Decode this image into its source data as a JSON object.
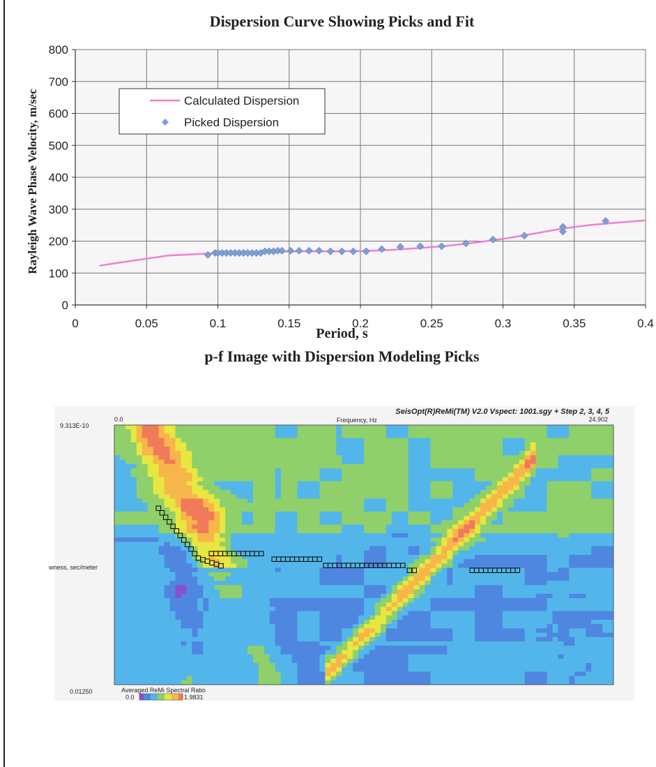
{
  "chart_data": [
    {
      "type": "scatter",
      "title": "Dispersion Curve Showing Picks and Fit",
      "xlabel": "Period, s",
      "ylabel": "Rayleigh Wave Phase Velocity, m/sec",
      "xlim": [
        0,
        0.4
      ],
      "ylim": [
        0,
        800
      ],
      "xticks": [
        "0",
        "0.05",
        "0.1",
        "0.15",
        "0.2",
        "0.25",
        "0.3",
        "0.35",
        "0.4"
      ],
      "yticks": [
        "0",
        "100",
        "200",
        "300",
        "400",
        "500",
        "600",
        "700",
        "800"
      ],
      "grid": true,
      "legend_position": "upper-left",
      "series": [
        {
          "name": "Calculated Dispersion",
          "kind": "line",
          "color": "#f07fd0",
          "x": [
            0.017,
            0.03,
            0.05,
            0.065,
            0.08,
            0.1,
            0.12,
            0.14,
            0.16,
            0.18,
            0.2,
            0.22,
            0.24,
            0.26,
            0.28,
            0.3,
            0.32,
            0.34,
            0.36,
            0.38,
            0.4
          ],
          "y": [
            123,
            132,
            145,
            155,
            158,
            163,
            165,
            167,
            168,
            168,
            169,
            172,
            178,
            185,
            195,
            207,
            222,
            238,
            250,
            258,
            265
          ]
        },
        {
          "name": "Picked Dispersion",
          "kind": "marker",
          "marker": "diamond",
          "color": "#7f9fd8",
          "x": [
            0.093,
            0.098,
            0.1,
            0.103,
            0.106,
            0.109,
            0.112,
            0.115,
            0.118,
            0.121,
            0.124,
            0.127,
            0.13,
            0.133,
            0.136,
            0.139,
            0.142,
            0.145,
            0.151,
            0.157,
            0.164,
            0.171,
            0.179,
            0.187,
            0.195,
            0.204,
            0.215,
            0.228,
            0.242,
            0.257,
            0.274,
            0.293,
            0.315,
            0.342,
            0.342,
            0.372
          ],
          "y": [
            157,
            163,
            163,
            163,
            163,
            163,
            163,
            163,
            163,
            163,
            163,
            163,
            163,
            168,
            168,
            168,
            170,
            170,
            170,
            170,
            170,
            170,
            168,
            168,
            168,
            168,
            175,
            182,
            184,
            184,
            193,
            205,
            217,
            230,
            245,
            263
          ]
        }
      ]
    },
    {
      "type": "heatmap",
      "title": "p-f Image with Dispersion Modeling Picks",
      "header": "SeisOpt(R)ReMi(TM) V2.0 Vspect: 1001.sgy + Step 2, 3, 4, 5",
      "xlabel": "Frequency, Hz",
      "ylabel": "wness, sec/meter",
      "x_min_label": "0.0",
      "x_max_label": "24.902",
      "y_top_label": "9.313E-10",
      "y_bottom_label": "0.01250",
      "colorbar_label": "Averaged ReMi Spectral Ratio",
      "colorbar_min": "0.0",
      "colorbar_max": "1.9831",
      "colormap": [
        "#8a4fd0",
        "#4f86e0",
        "#52b6ea",
        "#8fd06a",
        "#e8e640",
        "#f7b64a",
        "#f07a5a"
      ]
    }
  ]
}
